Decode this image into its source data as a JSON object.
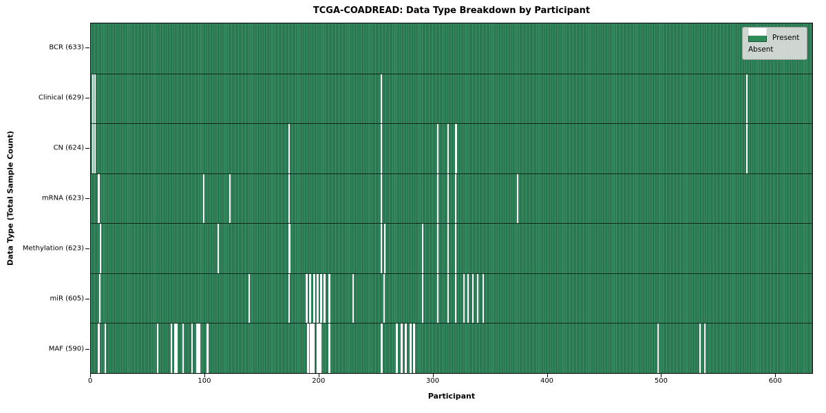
{
  "title": "TCGA-COADREAD: Data Type Breakdown by Participant",
  "xlabel": "Participant",
  "ylabel": "Data Type (Total Sample Count)",
  "legend": {
    "present_label": "Present",
    "absent_label": "Absent"
  },
  "colors": {
    "present": "#2e8b57",
    "present_light": "#3a9368",
    "present_dark": "#1e5e3c",
    "absent": "#ffffff",
    "legend_bg": "#d9ddd9"
  },
  "chart_data": {
    "type": "heatmap",
    "title": "TCGA-COADREAD: Data Type Breakdown by Participant",
    "xlabel": "Participant",
    "ylabel": "Data Type (Total Sample Count)",
    "legend_entries": [
      "Present",
      "Absent"
    ],
    "legend_position": "upper right",
    "n_participants": 633,
    "x_axis": {
      "ticks": [
        0,
        100,
        200,
        300,
        400,
        500,
        600
      ],
      "range": [
        0,
        633
      ]
    },
    "rows": [
      {
        "label": "BCR (633)",
        "data_type": "BCR",
        "present_count": 633,
        "absent_ranges": []
      },
      {
        "label": "Clinical (629)",
        "data_type": "Clinical",
        "present_count": 629,
        "absent_ranges": [
          [
            1,
            1
          ],
          [
            3,
            3
          ],
          [
            254,
            254
          ],
          [
            574,
            574
          ]
        ]
      },
      {
        "label": "CN (624)",
        "data_type": "CN",
        "present_count": 624,
        "absent_ranges": [
          [
            1,
            1
          ],
          [
            3,
            3
          ],
          [
            173,
            173
          ],
          [
            254,
            254
          ],
          [
            303,
            303
          ],
          [
            312,
            312
          ],
          [
            319,
            320
          ],
          [
            574,
            574
          ]
        ]
      },
      {
        "label": "mRNA (623)",
        "data_type": "mRNA",
        "present_count": 623,
        "absent_ranges": [
          [
            6,
            7
          ],
          [
            98,
            98
          ],
          [
            121,
            121
          ],
          [
            173,
            173
          ],
          [
            254,
            254
          ],
          [
            303,
            303
          ],
          [
            312,
            312
          ],
          [
            319,
            319
          ],
          [
            373,
            373
          ]
        ]
      },
      {
        "label": "Methylation (623)",
        "data_type": "Methylation",
        "present_count": 623,
        "absent_ranges": [
          [
            8,
            8
          ],
          [
            111,
            111
          ],
          [
            173,
            174
          ],
          [
            254,
            254
          ],
          [
            257,
            257
          ],
          [
            290,
            290
          ],
          [
            303,
            303
          ],
          [
            312,
            312
          ],
          [
            319,
            319
          ]
        ]
      },
      {
        "label": "miR (605)",
        "data_type": "miR",
        "present_count": 605,
        "absent_ranges": [
          [
            7,
            7
          ],
          [
            138,
            138
          ],
          [
            173,
            173
          ],
          [
            188,
            189
          ],
          [
            191,
            192
          ],
          [
            195,
            196
          ],
          [
            198,
            199
          ],
          [
            201,
            202
          ],
          [
            204,
            205
          ],
          [
            208,
            209
          ],
          [
            229,
            229
          ],
          [
            256,
            256
          ],
          [
            290,
            290
          ],
          [
            303,
            303
          ],
          [
            312,
            312
          ],
          [
            319,
            319
          ],
          [
            326,
            326
          ],
          [
            330,
            330
          ],
          [
            334,
            334
          ],
          [
            338,
            338
          ],
          [
            343,
            343
          ]
        ]
      },
      {
        "label": "MAF (590)",
        "data_type": "MAF",
        "present_count": 590,
        "absent_ranges": [
          [
            6,
            7
          ],
          [
            12,
            12
          ],
          [
            58,
            58
          ],
          [
            70,
            70
          ],
          [
            73,
            75
          ],
          [
            80,
            80
          ],
          [
            88,
            88
          ],
          [
            92,
            95
          ],
          [
            101,
            102
          ],
          [
            189,
            190
          ],
          [
            192,
            195
          ],
          [
            198,
            201
          ],
          [
            208,
            209
          ],
          [
            254,
            255
          ],
          [
            267,
            268
          ],
          [
            271,
            272
          ],
          [
            275,
            276
          ],
          [
            279,
            280
          ],
          [
            282,
            283
          ],
          [
            496,
            496
          ],
          [
            533,
            533
          ],
          [
            537,
            537
          ]
        ]
      }
    ]
  }
}
